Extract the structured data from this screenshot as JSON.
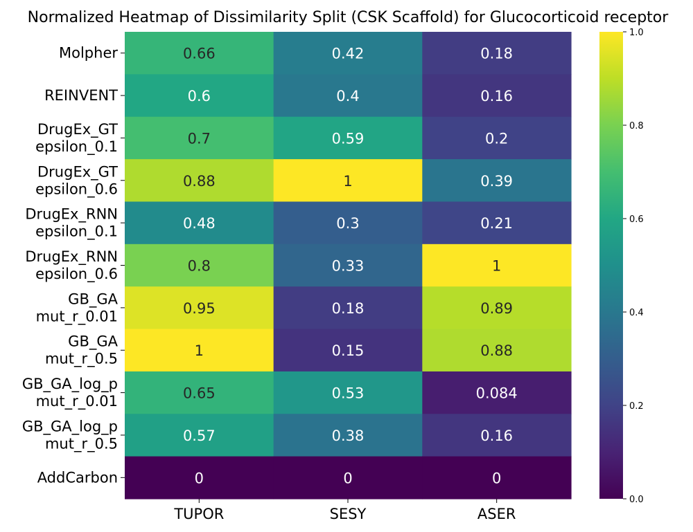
{
  "chart_data": {
    "type": "heatmap",
    "title": "Normalized Heatmap of Dissimilarity Split (CSK Scaffold) for Glucocorticoid receptor",
    "columns": [
      "TUPOR",
      "SESY",
      "ASER"
    ],
    "rows": [
      {
        "label": [
          "Molpher"
        ],
        "values": [
          0.66,
          0.42,
          0.18
        ],
        "labels": [
          "0.66",
          "0.42",
          "0.18"
        ]
      },
      {
        "label": [
          "REINVENT"
        ],
        "values": [
          0.6,
          0.4,
          0.16
        ],
        "labels": [
          "0.6",
          "0.4",
          "0.16"
        ]
      },
      {
        "label": [
          "DrugEx_GT",
          "epsilon_0.1"
        ],
        "values": [
          0.7,
          0.59,
          0.2
        ],
        "labels": [
          "0.7",
          "0.59",
          "0.2"
        ]
      },
      {
        "label": [
          "DrugEx_GT",
          "epsilon_0.6"
        ],
        "values": [
          0.88,
          1,
          0.39
        ],
        "labels": [
          "0.88",
          "1",
          "0.39"
        ]
      },
      {
        "label": [
          "DrugEx_RNN",
          "epsilon_0.1"
        ],
        "values": [
          0.48,
          0.3,
          0.21
        ],
        "labels": [
          "0.48",
          "0.3",
          "0.21"
        ]
      },
      {
        "label": [
          "DrugEx_RNN",
          "epsilon_0.6"
        ],
        "values": [
          0.8,
          0.33,
          1
        ],
        "labels": [
          "0.8",
          "0.33",
          "1"
        ]
      },
      {
        "label": [
          "GB_GA",
          "mut_r_0.01"
        ],
        "values": [
          0.95,
          0.18,
          0.89
        ],
        "labels": [
          "0.95",
          "0.18",
          "0.89"
        ]
      },
      {
        "label": [
          "GB_GA",
          "mut_r_0.5"
        ],
        "values": [
          1,
          0.15,
          0.88
        ],
        "labels": [
          "1",
          "0.15",
          "0.88"
        ]
      },
      {
        "label": [
          "GB_GA_log_p",
          "mut_r_0.01"
        ],
        "values": [
          0.65,
          0.53,
          0.084
        ],
        "labels": [
          "0.65",
          "0.53",
          "0.084"
        ]
      },
      {
        "label": [
          "GB_GA_log_p",
          "mut_r_0.5"
        ],
        "values": [
          0.57,
          0.38,
          0.16
        ],
        "labels": [
          "0.57",
          "0.38",
          "0.16"
        ]
      },
      {
        "label": [
          "AddCarbon"
        ],
        "values": [
          0,
          0,
          0
        ],
        "labels": [
          "0",
          "0",
          "0"
        ]
      }
    ],
    "colorbar": {
      "range": [
        0.0,
        1.0
      ],
      "ticks": [
        "0.0",
        "0.2",
        "0.4",
        "0.6",
        "0.8",
        "1.0"
      ],
      "colormap": "viridis"
    }
  }
}
